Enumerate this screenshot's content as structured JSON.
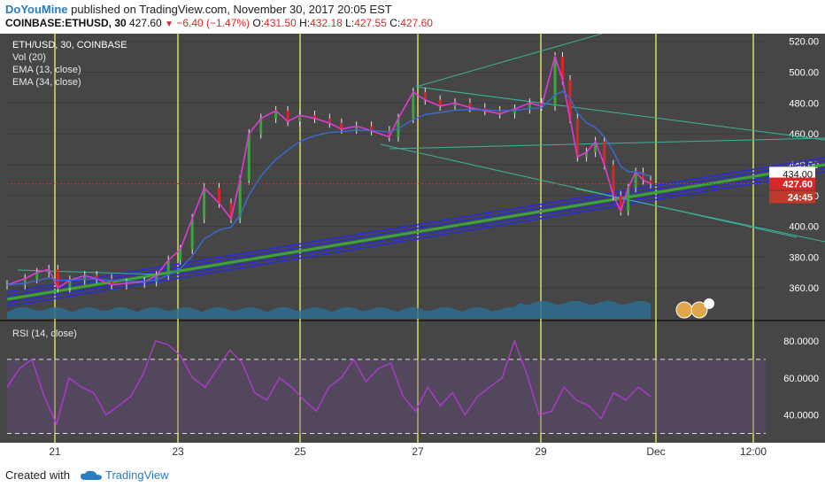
{
  "header": {
    "user": "DoYouMine",
    "published_text": "published on TradingView.com, November 30, 2017 20:05 EST",
    "symbol": "COINBASE:ETHUSD, 30",
    "last": "427.60",
    "change": "−6.40 (−1.47%)",
    "o_label": "O:",
    "o": "431.50",
    "h_label": "H:",
    "h": "432.18",
    "l_label": "L:",
    "l": "427.55",
    "c_label": "C:",
    "c": "427.60"
  },
  "footer": {
    "created_with": "Created with",
    "brand": "TradingView"
  },
  "colors": {
    "bg": "#464646",
    "grid": "#3a3a3a",
    "vline": "#ffff66",
    "ema_fast": "#e03ad6",
    "ema_slow": "#3a6bd8",
    "volume": "#2d6d8f",
    "rsi": "#b03ad0",
    "trend_blue": "#2b2bd8",
    "trend_green": "#3aa53a",
    "teal": "#3bb39a",
    "price_tag": "#d62828"
  },
  "chart_data": [
    {
      "type": "line",
      "title": "ETH/USD, 30, COINBASE",
      "legend": [
        "Vol (20)",
        "EMA (13, close)",
        "EMA (34, close)"
      ],
      "x_ticks": [
        "21",
        "23",
        "25",
        "27",
        "29",
        "Dec",
        "12:00"
      ],
      "y_ticks": [
        "360.00",
        "380.00",
        "400.00",
        "420.00",
        "440.00",
        "460.00",
        "480.00",
        "500.00",
        "520.00"
      ],
      "ylim": [
        340,
        525
      ],
      "price_labels": {
        "last": "427.60",
        "countdown": "24:45",
        "level": "434.00"
      },
      "series": [
        {
          "values": [
            362,
            366,
            370,
            372,
            360,
            365,
            368,
            366,
            362,
            363,
            364,
            368,
            378,
            385,
            405,
            425,
            415,
            405,
            430,
            460,
            470,
            475,
            468,
            472,
            470,
            467,
            463,
            465,
            462,
            458,
            470,
            487,
            482,
            478,
            480,
            477,
            475,
            473,
            476,
            480,
            478,
            510,
            495,
            470,
            445,
            448,
            455,
            440,
            420,
            410,
            425,
            435,
            430,
            427.6
          ]
        }
      ],
      "x": [
        0,
        0.6,
        1.0,
        1.4,
        1.7,
        2.1,
        2.6,
        3.0,
        3.5,
        4.0,
        4.6,
        5.0,
        5.4,
        5.8,
        6.2,
        6.6,
        7.1,
        7.5,
        7.8,
        8.1,
        8.5,
        9.0,
        9.4,
        9.8,
        10.3,
        10.8,
        11.2,
        11.7,
        12.2,
        12.8,
        13.1,
        13.6,
        14.0,
        14.5,
        15.0,
        15.5,
        16.0,
        16.5,
        17.0,
        17.5,
        17.9,
        18.35,
        18.6,
        18.85,
        19.1,
        19.4,
        19.7,
        20.0,
        20.3,
        20.55,
        20.8,
        21.05,
        21.3,
        21.55
      ]
    },
    {
      "type": "line",
      "title": "RSI (14, close)",
      "y_ticks": [
        "40.0000",
        "60.0000",
        "80.0000"
      ],
      "ylim": [
        25,
        90
      ],
      "bands": [
        30,
        70
      ],
      "series": [
        {
          "values": [
            55,
            65,
            70,
            50,
            35,
            60,
            55,
            52,
            40,
            45,
            50,
            62,
            80,
            78,
            72,
            60,
            55,
            65,
            75,
            68,
            52,
            48,
            60,
            55,
            48,
            42,
            55,
            60,
            70,
            58,
            65,
            68,
            50,
            42,
            55,
            45,
            52,
            40,
            50,
            55,
            60,
            80,
            62,
            40,
            42,
            55,
            48,
            45,
            38,
            52,
            48,
            55,
            50
          ]
        }
      ]
    }
  ]
}
